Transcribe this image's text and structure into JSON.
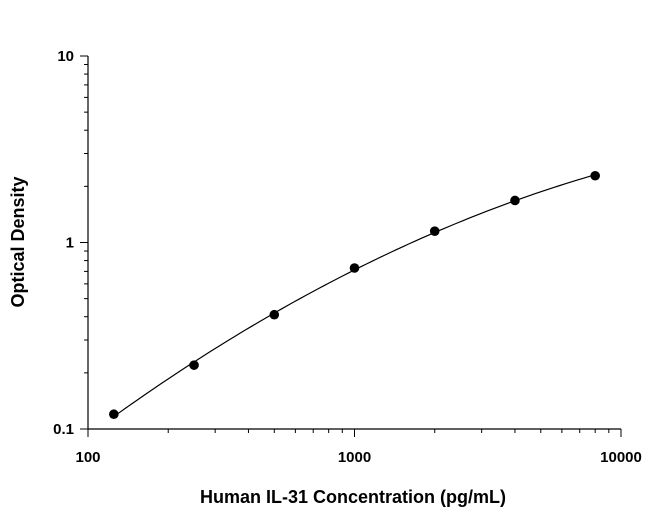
{
  "chart_data": {
    "type": "scatter",
    "title": "",
    "xlabel": "Human IL-31 Concentration (pg/mL)",
    "ylabel": "Optical Density",
    "x_scale": "log",
    "y_scale": "log",
    "xlim": [
      100,
      10000
    ],
    "ylim": [
      0.1,
      10
    ],
    "x_ticks": [
      {
        "value": 100,
        "label": "100"
      },
      {
        "value": 1000,
        "label": "1000"
      },
      {
        "value": 10000,
        "label": "10000"
      }
    ],
    "y_ticks": [
      {
        "value": 0.1,
        "label": "0.1"
      },
      {
        "value": 1,
        "label": "1"
      },
      {
        "value": 10,
        "label": "10"
      }
    ],
    "grid": false,
    "legend": "none",
    "series": [
      {
        "points": [
          {
            "x": 125,
            "y": 0.12
          },
          {
            "x": 250,
            "y": 0.22
          },
          {
            "x": 500,
            "y": 0.41
          },
          {
            "x": 1000,
            "y": 0.73
          },
          {
            "x": 2000,
            "y": 1.15
          },
          {
            "x": 4000,
            "y": 1.68
          },
          {
            "x": 8000,
            "y": 2.28
          }
        ],
        "fit_curve": true,
        "marker_color": "#000000",
        "line_color": "#000000"
      }
    ]
  }
}
